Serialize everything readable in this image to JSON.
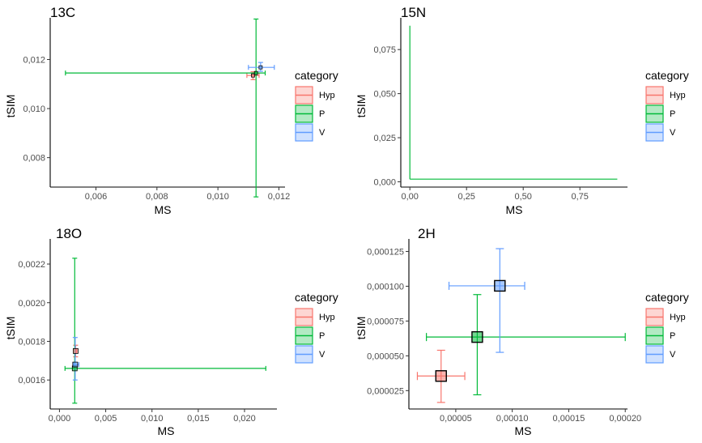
{
  "colors": {
    "Hyp": "#F8766D",
    "P": "#00BA38",
    "V": "#619CFF"
  },
  "legend": {
    "title": "category",
    "items": [
      "Hyp",
      "P",
      "V"
    ]
  },
  "chart_data": [
    {
      "type": "scatter",
      "title": "13C",
      "xlabel": "MS",
      "ylabel": "tSIM",
      "xlim": [
        0.0045,
        0.0122
      ],
      "ylim": [
        0.0068,
        0.0137
      ],
      "xticks": [
        0.006,
        0.008,
        0.01,
        0.012
      ],
      "xtick_labels": [
        "0,006",
        "0,008",
        "0,010",
        "0,012"
      ],
      "yticks": [
        0.008,
        0.01,
        0.012
      ],
      "ytick_labels": [
        "0,008",
        "0,010",
        "0,012"
      ],
      "series": [
        {
          "name": "Hyp",
          "x": 0.01115,
          "y": 0.01135,
          "xerr": [
            0.01095,
            0.01135
          ],
          "yerr": [
            0.01118,
            0.0115
          ]
        },
        {
          "name": "P",
          "x": 0.01125,
          "y": 0.01145,
          "xerr": [
            0.005,
            0.01155
          ],
          "yerr": [
            0.0064,
            0.01365
          ]
        },
        {
          "name": "V",
          "x": 0.0114,
          "y": 0.01168,
          "xerr": [
            0.011,
            0.01185
          ],
          "yerr": [
            0.01152,
            0.01188
          ]
        }
      ],
      "grid": false,
      "legend_position": "right"
    },
    {
      "type": "scatter",
      "title": "15N",
      "xlabel": "MS",
      "ylabel": "tSIM",
      "xlim": [
        -0.04,
        0.96
      ],
      "ylim": [
        -0.003,
        0.093
      ],
      "xticks": [
        0,
        0.25,
        0.5,
        0.75
      ],
      "xtick_labels": [
        "0,00",
        "0,25",
        "0,50",
        "0,75"
      ],
      "yticks": [
        0,
        0.025,
        0.05,
        0.075
      ],
      "ytick_labels": [
        "0,000",
        "0,025",
        "0,050",
        "0,075"
      ],
      "series": [
        {
          "name": "Hyp",
          "x": 0.0,
          "y": 0.0015,
          "xerr": [
            0.0,
            0.0
          ],
          "yerr": [
            0.0015,
            0.0015
          ]
        },
        {
          "name": "P",
          "x": 0.0,
          "y": 0.0015,
          "xerr": [
            0.0,
            0.915
          ],
          "yerr": [
            0.0015,
            0.0885
          ]
        },
        {
          "name": "V",
          "x": 0.0,
          "y": 0.0015,
          "xerr": [
            0.0,
            0.0
          ],
          "yerr": [
            0.0015,
            0.0015
          ]
        }
      ],
      "grid": false,
      "legend_position": "right"
    },
    {
      "type": "scatter",
      "title": "18O",
      "xlabel": "MS",
      "ylabel": "tSIM",
      "xlim": [
        -0.001,
        0.0235
      ],
      "ylim": [
        0.00145,
        0.00233
      ],
      "xticks": [
        0,
        0.005,
        0.01,
        0.015,
        0.02
      ],
      "xtick_labels": [
        "0,000",
        "0,005",
        "0,010",
        "0,015",
        "0,020"
      ],
      "yticks": [
        0.0016,
        0.0018,
        0.002,
        0.0022
      ],
      "ytick_labels": [
        "0,0016",
        "0,0018",
        "0,0020",
        "0,0022"
      ],
      "series": [
        {
          "name": "Hyp",
          "x": 0.00175,
          "y": 0.00175,
          "xerr": [
            0.00165,
            0.00185
          ],
          "yerr": [
            0.00172,
            0.00178
          ]
        },
        {
          "name": "P",
          "x": 0.00165,
          "y": 0.00166,
          "xerr": [
            0.0006,
            0.0223
          ],
          "yerr": [
            0.00148,
            0.00223
          ]
        },
        {
          "name": "V",
          "x": 0.0017,
          "y": 0.00168,
          "xerr": [
            0.0015,
            0.0021
          ],
          "yerr": [
            0.0016,
            0.00182
          ]
        }
      ],
      "grid": false,
      "legend_position": "right"
    },
    {
      "type": "scatter",
      "title": "2H",
      "xlabel": "MS",
      "ylabel": "tSIM",
      "xlim": [
        8.5e-06,
        0.000202
      ],
      "ylim": [
        1.18e-05,
        0.000134
      ],
      "xticks": [
        5e-05,
        0.0001,
        0.00015,
        0.0002
      ],
      "xtick_labels": [
        "0,00005",
        "0,00010",
        "0,00015",
        "0,00020"
      ],
      "yticks": [
        2.5e-05,
        5e-05,
        7.5e-05,
        0.0001,
        0.000125
      ],
      "ytick_labels": [
        "0,000025",
        "0,000050",
        "0,000075",
        "0,000100",
        "0,000125"
      ],
      "series": [
        {
          "name": "Hyp",
          "x": 3.7e-05,
          "y": 3.55e-05,
          "xerr": [
            1.6e-05,
            5.8e-05
          ],
          "yerr": [
            1.65e-05,
            5.4e-05
          ]
        },
        {
          "name": "P",
          "x": 6.9e-05,
          "y": 6.35e-05,
          "xerr": [
            2.4e-05,
            0.0002
          ],
          "yerr": [
            2.2e-05,
            9.4e-05
          ]
        },
        {
          "name": "V",
          "x": 8.9e-05,
          "y": 0.0001003,
          "xerr": [
            4.4e-05,
            0.000111
          ],
          "yerr": [
            5.25e-05,
            0.000127
          ]
        }
      ],
      "grid": false,
      "legend_position": "right"
    }
  ]
}
